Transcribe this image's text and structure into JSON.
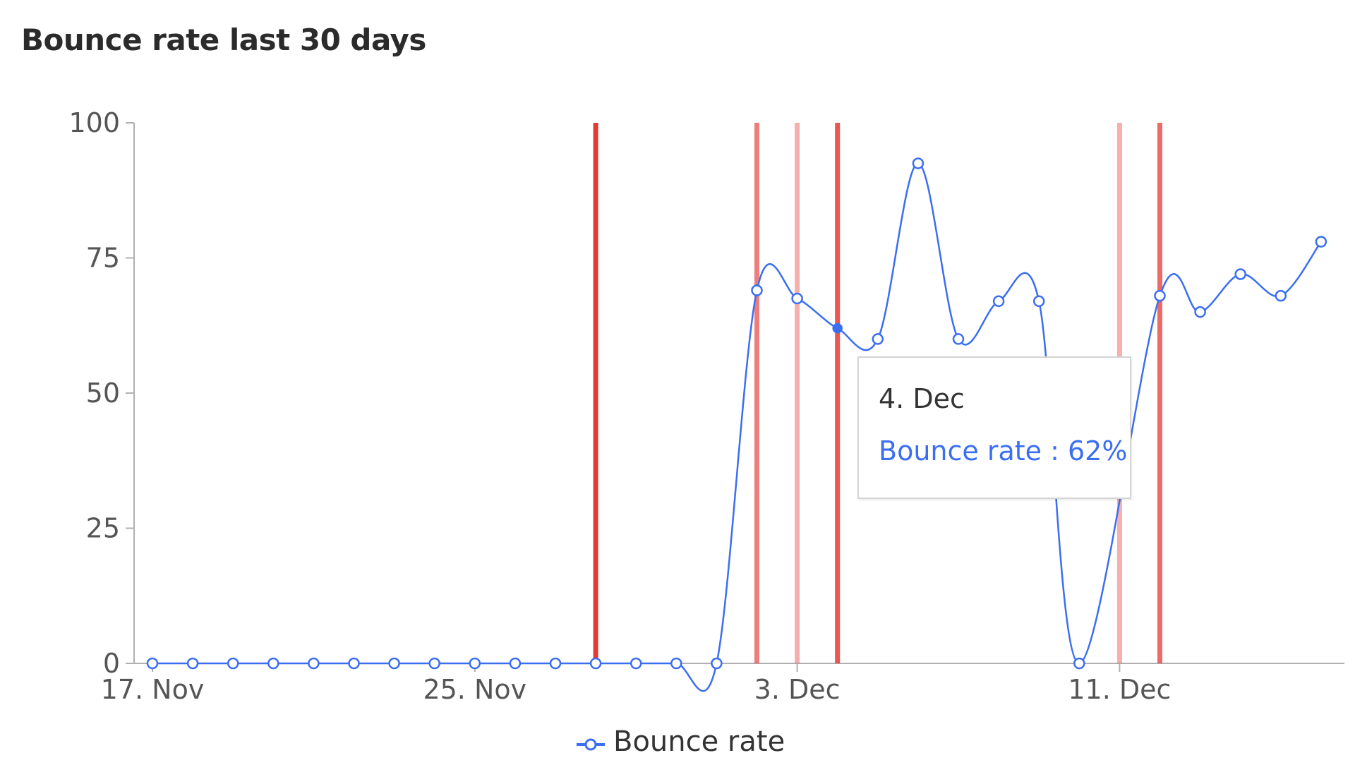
{
  "chart_data": {
    "type": "line",
    "title": "Bounce rate last 30 days",
    "x": [
      "17. Nov",
      "18. Nov",
      "19. Nov",
      "20. Nov",
      "21. Nov",
      "22. Nov",
      "23. Nov",
      "24. Nov",
      "25. Nov",
      "26. Nov",
      "27. Nov",
      "28. Nov",
      "29. Nov",
      "30. Nov",
      "1. Dec",
      "2. Dec",
      "3. Dec",
      "4. Dec",
      "5. Dec",
      "6. Dec",
      "7. Dec",
      "8. Dec",
      "9. Dec",
      "10. Dec",
      "11. Dec",
      "12. Dec",
      "13. Dec",
      "14. Dec",
      "15. Dec",
      "16. Dec"
    ],
    "x_ticks": [
      "17. Nov",
      "25. Nov",
      "3. Dec",
      "11. Dec"
    ],
    "series": [
      {
        "name": "Bounce rate",
        "color": "#3b6ef0",
        "values": [
          0,
          0,
          0,
          0,
          0,
          0,
          0,
          0,
          0,
          0,
          0,
          0,
          0,
          0,
          0,
          69,
          67.5,
          62,
          60,
          92.5,
          60,
          67,
          67,
          0,
          null,
          68,
          65,
          72,
          68,
          78
        ]
      }
    ],
    "y_ticks": [
      0,
      25,
      50,
      75,
      100
    ],
    "ylim": [
      0,
      100
    ],
    "markers": [
      {
        "x": "28. Nov",
        "color": "#e53935",
        "opacity": 1.0
      },
      {
        "x": "2. Dec",
        "color": "#e53935",
        "opacity": 0.65
      },
      {
        "x": "3. Dec",
        "color": "#e53935",
        "opacity": 0.4
      },
      {
        "x": "4. Dec",
        "color": "#e53935",
        "opacity": 0.85
      },
      {
        "x": "11. Dec",
        "color": "#e53935",
        "opacity": 0.4
      },
      {
        "x": "12. Dec",
        "color": "#e53935",
        "opacity": 0.75
      }
    ],
    "highlighted_point": "4. Dec",
    "tooltip": {
      "date": "4. Dec",
      "text": "Bounce rate : 62%",
      "color": "#3b6ef0"
    },
    "legend": {
      "label": "Bounce rate",
      "position": "bottom-center"
    },
    "colors": {
      "axis": "#b0b0b0",
      "tick_text": "#555555",
      "title": "#2b2b2b"
    }
  }
}
